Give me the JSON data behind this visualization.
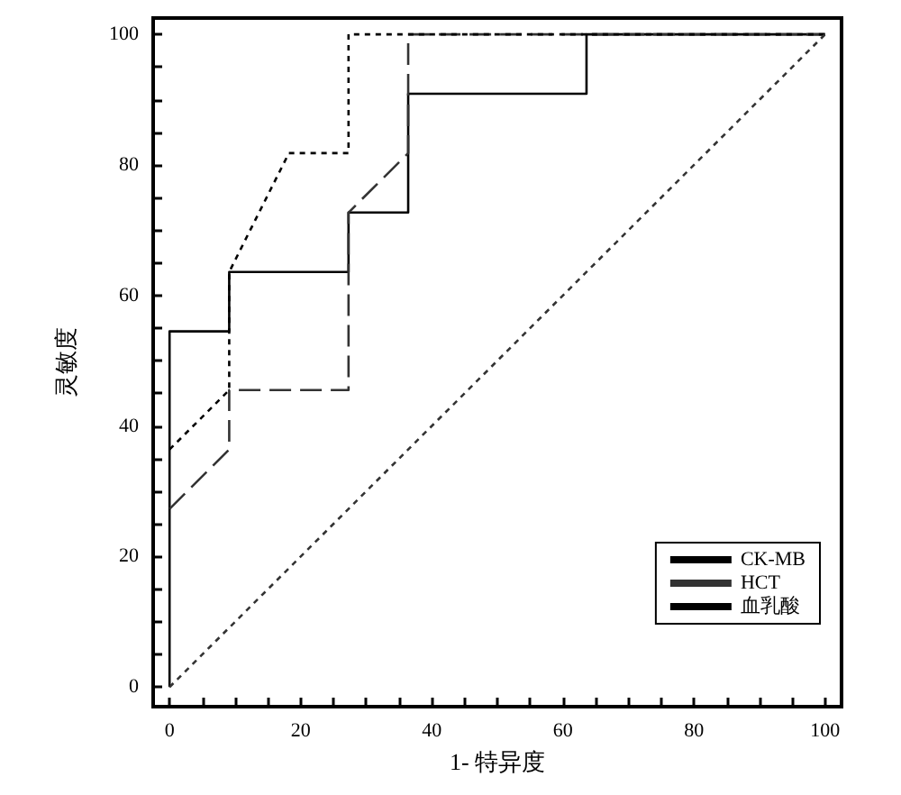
{
  "chart_data": {
    "type": "line",
    "xlabel": "1- 特异度",
    "ylabel": "灵敏度",
    "xlim": [
      -2.5,
      102.5
    ],
    "ylim": [
      -3,
      102.5
    ],
    "xticks": [
      0,
      {
        "value": 5,
        "label": null
      },
      {
        "value": 10,
        "label": null
      },
      {
        "value": 15,
        "label": null
      },
      20,
      {
        "value": 25,
        "label": null
      },
      {
        "value": 30,
        "label": null
      },
      {
        "value": 35,
        "label": null
      },
      40,
      {
        "value": 45,
        "label": null
      },
      {
        "value": 50,
        "label": null
      },
      {
        "value": 55,
        "label": null
      },
      60,
      {
        "value": 65,
        "label": null
      },
      {
        "value": 70,
        "label": null
      },
      {
        "value": 75,
        "label": null
      },
      80,
      {
        "value": 85,
        "label": null
      },
      {
        "value": 90,
        "label": null
      },
      {
        "value": 95,
        "label": null
      },
      100
    ],
    "yticks": [
      0,
      {
        "value": 5,
        "label": null
      },
      {
        "value": 10,
        "label": null
      },
      {
        "value": 15,
        "label": null
      },
      20,
      {
        "value": 25,
        "label": null
      },
      {
        "value": 30,
        "label": null
      },
      {
        "value": 35,
        "label": null
      },
      40,
      {
        "value": 45,
        "label": null
      },
      {
        "value": 50,
        "label": null
      },
      {
        "value": 55,
        "label": null
      },
      60,
      {
        "value": 65,
        "label": null
      },
      {
        "value": 70,
        "label": null
      },
      {
        "value": 75,
        "label": null
      },
      80,
      {
        "value": 85,
        "label": null
      },
      {
        "value": 90,
        "label": null
      },
      {
        "value": 95,
        "label": null
      },
      100
    ],
    "grid": false,
    "legend": "bottom right",
    "marker": "none",
    "series": [
      {
        "name": "CK-MB",
        "color": "#000000",
        "line_style": "solid",
        "x": [
          0,
          0,
          9.1,
          9.1,
          27.3,
          27.3,
          36.4,
          36.4,
          63.6,
          63.6,
          100
        ],
        "values": [
          0,
          54.5,
          54.5,
          63.6,
          63.6,
          72.7,
          72.7,
          90.9,
          90.9,
          100,
          100
        ]
      },
      {
        "name": "HCT",
        "color": "#333333",
        "line_style": "dashed",
        "x": [
          0,
          9.1,
          9.1,
          27.3,
          27.3,
          36.4,
          36.4,
          100
        ],
        "values": [
          27.3,
          36.4,
          45.5,
          45.5,
          72.7,
          81.8,
          100,
          100
        ]
      },
      {
        "name": "血乳酸",
        "color": "#000000",
        "line_style": "dotted",
        "x": [
          0,
          9.1,
          9.1,
          18.2,
          27.3,
          27.3,
          100
        ],
        "values": [
          36.4,
          45.5,
          63.6,
          81.8,
          81.8,
          100,
          100
        ]
      },
      {
        "color": "#333333",
        "line_style": "dotted",
        "x": [
          0,
          100
        ],
        "values": [
          0,
          100
        ]
      }
    ]
  }
}
